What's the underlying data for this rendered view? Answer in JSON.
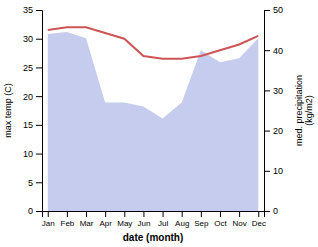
{
  "chart_data": {
    "type": "line",
    "categories": [
      "Jan",
      "Feb",
      "Mar",
      "Apr",
      "May",
      "Jun",
      "Jul",
      "Aug",
      "Sep",
      "Oct",
      "Nov",
      "Dec"
    ],
    "xlabel": "date (month)",
    "ylabel": "max temp (C)",
    "y2label": "med. precipitation\n(kg/m2)",
    "ylim": [
      0,
      35
    ],
    "yticks": [
      0,
      5,
      10,
      15,
      20,
      25,
      30,
      35
    ],
    "y2lim": [
      0,
      50
    ],
    "y2ticks": [
      0,
      10,
      20,
      30,
      40,
      50
    ],
    "series": [
      {
        "type": "area",
        "axis": "y2",
        "color": "#c5ccee",
        "values": [
          44.0,
          44.5,
          43.0,
          27.0,
          27.0,
          26.0,
          23.0,
          27.0,
          40.0,
          37.0,
          38.0,
          43.0
        ]
      },
      {
        "type": "line",
        "color": "#cd5555",
        "values": [
          31.5,
          32.0,
          32.0,
          31.0,
          30.0,
          27.0,
          26.5,
          26.5,
          27.0,
          28.0,
          29.0,
          30.5
        ]
      }
    ]
  }
}
